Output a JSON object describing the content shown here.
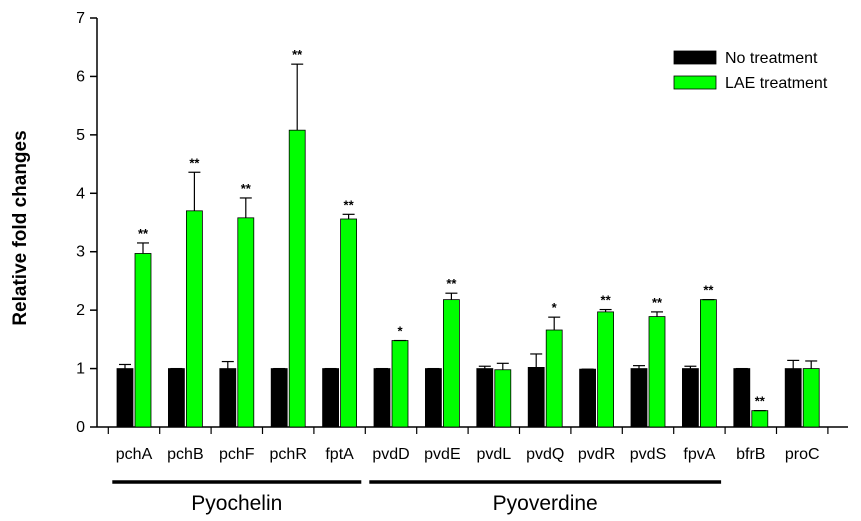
{
  "chart_data": {
    "type": "bar",
    "ylabel": "Relative fold changes",
    "xlabel": "",
    "ylim": [
      0,
      7
    ],
    "yticks": [
      0,
      1,
      2,
      3,
      4,
      5,
      6,
      7
    ],
    "categories": [
      "pchA",
      "pchB",
      "pchF",
      "pchR",
      "fptA",
      "pvdD",
      "pvdE",
      "pvdL",
      "pvdQ",
      "pvdR",
      "pvdS",
      "fpvA",
      "bfrB",
      "proC"
    ],
    "series": [
      {
        "name": "No treatment",
        "color": "#000000",
        "values": [
          1.0,
          1.0,
          1.0,
          1.0,
          1.0,
          1.0,
          1.0,
          1.0,
          1.02,
          0.99,
          1.0,
          1.0,
          1.0,
          1.0
        ],
        "errors": [
          0.07,
          0.0,
          0.12,
          0.0,
          0.0,
          0.0,
          0.0,
          0.04,
          0.23,
          0.0,
          0.05,
          0.04,
          0.0,
          0.14
        ]
      },
      {
        "name": "LAE treatment",
        "color": "#00ff00",
        "values": [
          2.97,
          3.7,
          3.58,
          5.08,
          3.56,
          1.48,
          2.18,
          0.98,
          1.66,
          1.97,
          1.89,
          2.18,
          0.28,
          1.0
        ],
        "errors": [
          0.18,
          0.66,
          0.34,
          1.13,
          0.08,
          0.0,
          0.11,
          0.11,
          0.22,
          0.04,
          0.08,
          0.0,
          0.0,
          0.13
        ]
      }
    ],
    "significance": [
      "**",
      "**",
      "**",
      "**",
      "**",
      "*",
      "**",
      "",
      "*",
      "**",
      "**",
      "**",
      "**",
      ""
    ],
    "groups": [
      {
        "label": "Pyochelin",
        "from": 0,
        "to": 4
      },
      {
        "label": "Pyoverdine",
        "from": 5,
        "to": 11
      }
    ],
    "legend_position": "top-right",
    "grid": false
  }
}
